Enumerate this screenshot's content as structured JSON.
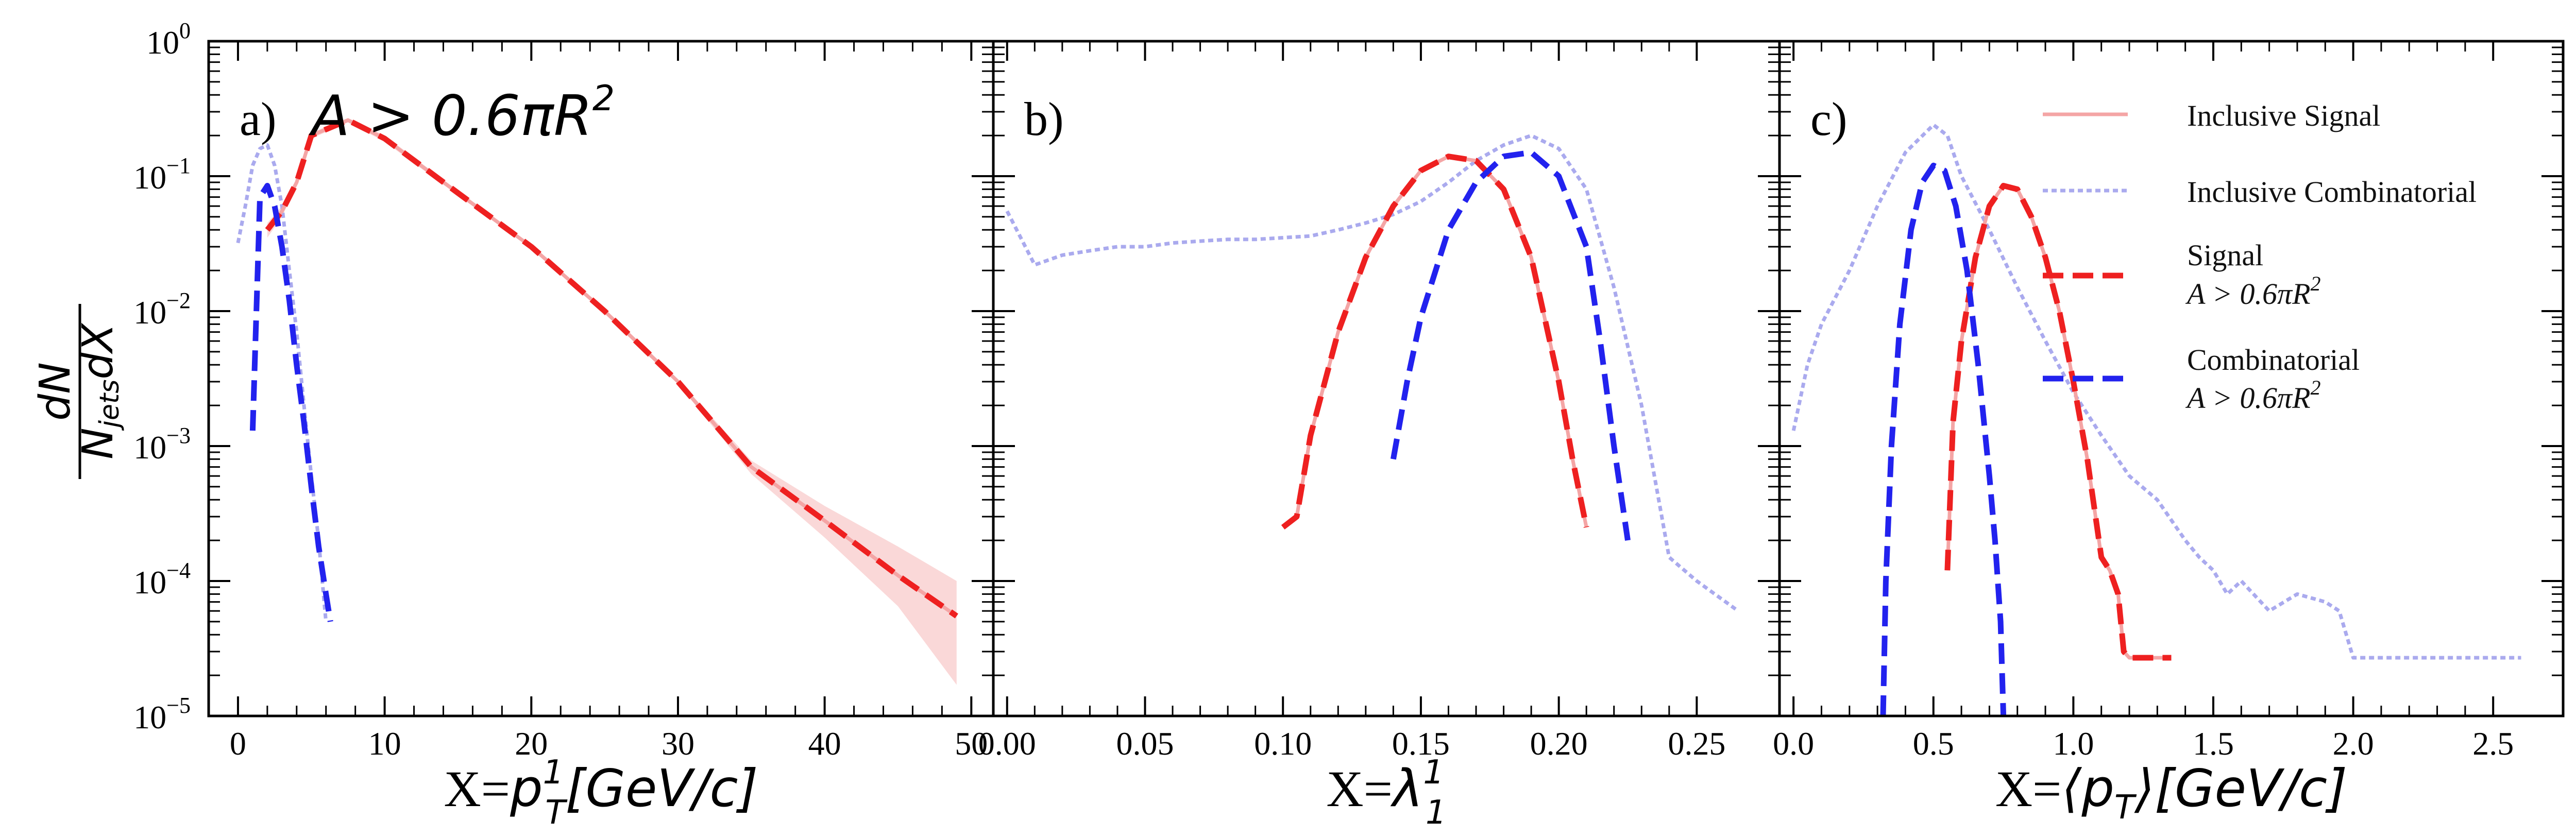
{
  "figure": {
    "ylabel_numerator": "dN",
    "ylabel_denominator": "N",
    "ylabel_denominator_sub": "jets",
    "ylabel_denominator_tail": "dX",
    "cut_label": "A > 0.6πR",
    "cut_label_sup": "2",
    "y_tick_base": "10",
    "y_tick_exponents": [
      "0",
      "−1",
      "−2",
      "−3",
      "−4",
      "−5"
    ]
  },
  "legend": {
    "inclusive_signal": "Inclusive Signal",
    "inclusive_combinatorial": "Inclusive Combinatorial",
    "signal": "Signal",
    "signal_cut": "A > 0.6πR",
    "signal_cut_sup": "2",
    "combinatorial": "Combinatorial",
    "combinatorial_cut": "A > 0.6πR",
    "combinatorial_cut_sup": "2"
  },
  "colors": {
    "inclusive_signal": "#f4a5a5",
    "inclusive_signal_band": "#f8c8c8",
    "inclusive_combinatorial": "#aaaaee",
    "inclusive_combinatorial_band": "#e2e2f8",
    "signal_cut": "#ee2020",
    "combinatorial_cut": "#2222ee"
  },
  "chart_data": [
    {
      "type": "line",
      "panel": "a)",
      "xlabel_prefix": "X=",
      "xlabel_var": "p",
      "xlabel_sup": "1",
      "xlabel_sub": "T",
      "xlabel_suffix": "[GeV/c]",
      "xlim": [
        -2,
        51.5
      ],
      "ylim": [
        1e-05,
        1
      ],
      "yscale": "log",
      "xticks": [
        0,
        10,
        20,
        30,
        40,
        50
      ],
      "xtick_labels": [
        "0",
        "10",
        "20",
        "30",
        "40",
        "50"
      ],
      "series": [
        {
          "name": "Inclusive Signal",
          "x": [
            2,
            3,
            4,
            5,
            7.5,
            10,
            15,
            20,
            25,
            30,
            35,
            40,
            45,
            49
          ],
          "y": [
            0.04,
            0.055,
            0.09,
            0.2,
            0.26,
            0.19,
            0.075,
            0.03,
            0.01,
            0.003,
            0.0007,
            0.00028,
            0.00011,
            5.5e-05
          ],
          "band_lo": [
            0.035,
            0.05,
            0.085,
            0.19,
            0.25,
            0.18,
            0.072,
            0.029,
            0.0097,
            0.0029,
            0.00062,
            0.00021,
            6.5e-05,
            1.7e-05
          ],
          "band_hi": [
            0.045,
            0.06,
            0.095,
            0.21,
            0.27,
            0.2,
            0.078,
            0.031,
            0.0103,
            0.0031,
            0.00078,
            0.00036,
            0.00018,
            0.0001
          ]
        },
        {
          "name": "Inclusive Combinatorial",
          "x": [
            0,
            0.5,
            1,
            1.5,
            2,
            2.5,
            3,
            3.5,
            4,
            4.5,
            5,
            5.5,
            6
          ],
          "y": [
            0.032,
            0.06,
            0.12,
            0.16,
            0.17,
            0.12,
            0.06,
            0.02,
            0.007,
            0.002,
            0.0006,
            0.0002,
            5e-05
          ]
        },
        {
          "name": "Signal A > 0.6πR²",
          "x": [
            2,
            3,
            4,
            5,
            7.5,
            10,
            15,
            20,
            25,
            30,
            35,
            40,
            45,
            49
          ],
          "y": [
            0.04,
            0.055,
            0.09,
            0.2,
            0.26,
            0.19,
            0.075,
            0.03,
            0.01,
            0.003,
            0.0007,
            0.00028,
            0.00011,
            5.5e-05
          ]
        },
        {
          "name": "Combinatorial A > 0.6πR²",
          "x": [
            1,
            1.5,
            2,
            2.5,
            3,
            3.5,
            4,
            4.5,
            5,
            5.5,
            6,
            6.3
          ],
          "y": [
            0.0013,
            0.07,
            0.085,
            0.06,
            0.03,
            0.012,
            0.004,
            0.0015,
            0.0005,
            0.00018,
            8e-05,
            5e-05
          ]
        }
      ]
    },
    {
      "type": "line",
      "panel": "b)",
      "xlabel_prefix": "X=",
      "xlabel_var": "λ",
      "xlabel_sup": "1",
      "xlabel_sub": "1",
      "xlabel_suffix": "",
      "xlim": [
        -0.005,
        0.28
      ],
      "ylim": [
        1e-05,
        1
      ],
      "yscale": "log",
      "xticks": [
        0,
        0.05,
        0.1,
        0.15,
        0.2,
        0.25
      ],
      "xtick_labels": [
        "0.00",
        "0.05",
        "0.10",
        "0.15",
        "0.20",
        "0.25"
      ],
      "series": [
        {
          "name": "Inclusive Signal",
          "x": [
            0.1,
            0.105,
            0.11,
            0.12,
            0.13,
            0.14,
            0.15,
            0.16,
            0.17,
            0.18,
            0.19,
            0.2,
            0.205,
            0.21
          ],
          "y": [
            0.00025,
            0.0003,
            0.0012,
            0.007,
            0.025,
            0.06,
            0.11,
            0.14,
            0.13,
            0.08,
            0.025,
            0.003,
            0.0008,
            0.00025
          ]
        },
        {
          "name": "Inclusive Combinatorial",
          "x": [
            0,
            0.01,
            0.02,
            0.03,
            0.04,
            0.05,
            0.06,
            0.07,
            0.08,
            0.09,
            0.1,
            0.11,
            0.12,
            0.13,
            0.14,
            0.15,
            0.16,
            0.17,
            0.18,
            0.19,
            0.2,
            0.21,
            0.22,
            0.23,
            0.24,
            0.25,
            0.265
          ],
          "y": [
            0.055,
            0.022,
            0.026,
            0.028,
            0.03,
            0.03,
            0.032,
            0.033,
            0.034,
            0.034,
            0.035,
            0.036,
            0.04,
            0.045,
            0.052,
            0.065,
            0.09,
            0.13,
            0.17,
            0.2,
            0.16,
            0.08,
            0.015,
            0.002,
            0.00015,
            0.0001,
            6e-05
          ]
        },
        {
          "name": "Signal A > 0.6πR²",
          "x": [
            0.1,
            0.105,
            0.11,
            0.12,
            0.13,
            0.14,
            0.15,
            0.16,
            0.17,
            0.18,
            0.19,
            0.2,
            0.205,
            0.21
          ],
          "y": [
            0.00025,
            0.0003,
            0.0012,
            0.007,
            0.025,
            0.06,
            0.11,
            0.14,
            0.13,
            0.08,
            0.025,
            0.003,
            0.0008,
            0.00025
          ]
        },
        {
          "name": "Combinatorial A > 0.6πR²",
          "x": [
            0.14,
            0.145,
            0.15,
            0.16,
            0.17,
            0.18,
            0.19,
            0.2,
            0.21,
            0.215,
            0.22,
            0.225
          ],
          "y": [
            0.0008,
            0.003,
            0.009,
            0.04,
            0.09,
            0.14,
            0.15,
            0.1,
            0.03,
            0.006,
            0.001,
            0.0002
          ]
        }
      ]
    },
    {
      "type": "line",
      "panel": "c)",
      "xlabel_prefix": "X=",
      "xlabel_var": "⟨p",
      "xlabel_sup": "",
      "xlabel_sub": "T",
      "xlabel_suffix": "⟩[GeV/c]",
      "xlim": [
        -0.05,
        2.75
      ],
      "ylim": [
        1e-05,
        1
      ],
      "yscale": "log",
      "xticks": [
        0,
        0.5,
        1,
        1.5,
        2,
        2.5
      ],
      "xtick_labels": [
        "0.0",
        "0.5",
        "1.0",
        "1.5",
        "2.0",
        "2.5"
      ],
      "series": [
        {
          "name": "Inclusive Signal",
          "x": [
            0.55,
            0.57,
            0.6,
            0.65,
            0.7,
            0.75,
            0.8,
            0.85,
            0.9,
            0.95,
            1.0,
            1.05,
            1.1,
            1.13,
            1.16,
            1.18,
            1.2,
            1.25,
            1.35
          ],
          "y": [
            0.00012,
            0.0015,
            0.006,
            0.025,
            0.06,
            0.085,
            0.08,
            0.05,
            0.025,
            0.01,
            0.003,
            0.0008,
            0.00015,
            0.00012,
            8e-05,
            3e-05,
            2.7e-05,
            2.7e-05,
            2.7e-05
          ]
        },
        {
          "name": "Inclusive Combinatorial",
          "x": [
            0.0,
            0.05,
            0.1,
            0.2,
            0.3,
            0.4,
            0.5,
            0.55,
            0.6,
            0.7,
            0.8,
            0.9,
            1.0,
            1.1,
            1.2,
            1.3,
            1.4,
            1.45,
            1.5,
            1.55,
            1.6,
            1.7,
            1.8,
            1.9,
            1.95,
            2.0,
            2.1,
            2.2,
            2.3,
            2.4,
            2.5,
            2.6
          ],
          "y": [
            0.0013,
            0.004,
            0.008,
            0.02,
            0.06,
            0.15,
            0.24,
            0.2,
            0.1,
            0.04,
            0.015,
            0.006,
            0.0025,
            0.0012,
            0.0006,
            0.0004,
            0.0002,
            0.00015,
            0.00012,
            8e-05,
            0.0001,
            6e-05,
            8e-05,
            7e-05,
            6e-05,
            2.7e-05,
            2.7e-05,
            2.7e-05,
            2.7e-05,
            2.7e-05,
            2.7e-05,
            2.7e-05
          ]
        },
        {
          "name": "Signal A > 0.6πR²",
          "x": [
            0.55,
            0.57,
            0.6,
            0.65,
            0.7,
            0.75,
            0.8,
            0.85,
            0.9,
            0.95,
            1.0,
            1.05,
            1.1,
            1.13,
            1.16,
            1.18,
            1.2,
            1.25,
            1.35
          ],
          "y": [
            0.00012,
            0.0015,
            0.006,
            0.025,
            0.06,
            0.085,
            0.08,
            0.05,
            0.025,
            0.01,
            0.003,
            0.0008,
            0.00015,
            0.00012,
            8e-05,
            3e-05,
            2.7e-05,
            2.7e-05,
            2.7e-05
          ]
        },
        {
          "name": "Combinatorial A > 0.6πR²",
          "x": [
            0.32,
            0.33,
            0.35,
            0.38,
            0.42,
            0.46,
            0.5,
            0.54,
            0.58,
            0.62,
            0.66,
            0.7,
            0.72,
            0.74,
            0.75
          ],
          "y": [
            1e-05,
            0.0001,
            0.001,
            0.008,
            0.04,
            0.09,
            0.12,
            0.11,
            0.06,
            0.02,
            0.004,
            0.0006,
            0.0002,
            5e-05,
            1e-05
          ]
        }
      ]
    }
  ]
}
